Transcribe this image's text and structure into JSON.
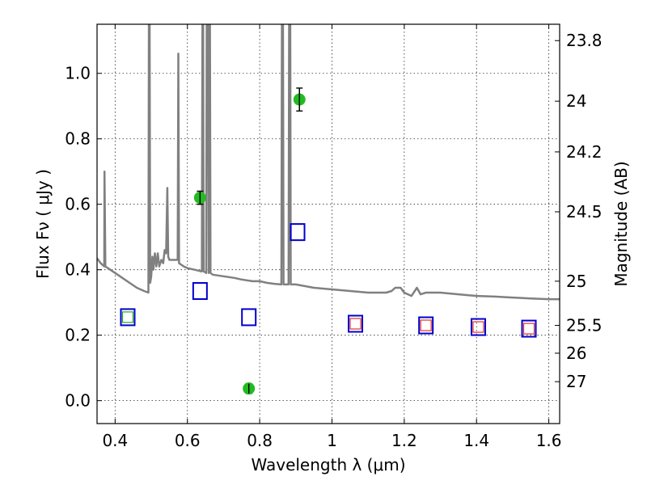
{
  "chart_data": {
    "type": "scatter",
    "xlabel": "Wavelength  λ (μm)",
    "ylabel": "Flux  Fν  ( μJy )",
    "y2label": "Magnitude (AB)",
    "xlim": [
      0.35,
      1.63
    ],
    "ylim": [
      -0.07,
      1.15
    ],
    "x_ticks": [
      0.4,
      0.6,
      0.8,
      1.0,
      1.2,
      1.4,
      1.6
    ],
    "x_tick_labels": [
      "0.4",
      "0.6",
      "0.8",
      "1",
      "1.2",
      "1.4",
      "1.6"
    ],
    "y_ticks": [
      0.0,
      0.2,
      0.4,
      0.6,
      0.8,
      1.0
    ],
    "y_tick_labels": [
      "0.0",
      "0.2",
      "0.4",
      "0.6",
      "0.8",
      "1.0"
    ],
    "y2_ticks": [
      {
        "label": "23.8",
        "flux": 1.1
      },
      {
        "label": "24",
        "flux": 0.915
      },
      {
        "label": "24.2",
        "flux": 0.76
      },
      {
        "label": "24.5",
        "flux": 0.577
      },
      {
        "label": "25",
        "flux": 0.365
      },
      {
        "label": "25.5",
        "flux": 0.23
      },
      {
        "label": "26",
        "flux": 0.145
      },
      {
        "label": "27",
        "flux": 0.058
      }
    ],
    "grid": true,
    "series": [
      {
        "kind": "line",
        "color": "#808080",
        "points": [
          [
            0.35,
            0.435
          ],
          [
            0.36,
            0.42
          ],
          [
            0.37,
            0.41
          ],
          [
            0.3705,
            0.7
          ],
          [
            0.373,
            0.41
          ],
          [
            0.38,
            0.405
          ],
          [
            0.4,
            0.39
          ],
          [
            0.42,
            0.375
          ],
          [
            0.44,
            0.36
          ],
          [
            0.46,
            0.345
          ],
          [
            0.48,
            0.335
          ],
          [
            0.492,
            0.33
          ],
          [
            0.4935,
            1.15
          ],
          [
            0.4955,
            1.15
          ],
          [
            0.497,
            0.36
          ],
          [
            0.5,
            0.38
          ],
          [
            0.503,
            0.44
          ],
          [
            0.506,
            0.4
          ],
          [
            0.51,
            0.45
          ],
          [
            0.514,
            0.41
          ],
          [
            0.518,
            0.45
          ],
          [
            0.522,
            0.41
          ],
          [
            0.528,
            0.43
          ],
          [
            0.533,
            0.42
          ],
          [
            0.537,
            0.46
          ],
          [
            0.541,
            0.45
          ],
          [
            0.5445,
            0.65
          ],
          [
            0.547,
            0.44
          ],
          [
            0.55,
            0.43
          ],
          [
            0.56,
            0.43
          ],
          [
            0.573,
            0.43
          ],
          [
            0.575,
            1.06
          ],
          [
            0.577,
            0.42
          ],
          [
            0.59,
            0.41
          ],
          [
            0.6,
            0.405
          ],
          [
            0.62,
            0.4
          ],
          [
            0.638,
            0.395
          ],
          [
            0.64,
            0.395
          ],
          [
            0.6415,
            1.15
          ],
          [
            0.6435,
            1.15
          ],
          [
            0.645,
            0.395
          ],
          [
            0.652,
            0.39
          ],
          [
            0.6535,
            1.15
          ],
          [
            0.6575,
            1.15
          ],
          [
            0.659,
            0.39
          ],
          [
            0.6605,
            1.15
          ],
          [
            0.6625,
            1.15
          ],
          [
            0.664,
            0.39
          ],
          [
            0.67,
            0.385
          ],
          [
            0.7,
            0.38
          ],
          [
            0.73,
            0.375
          ],
          [
            0.75,
            0.37
          ],
          [
            0.78,
            0.365
          ],
          [
            0.8,
            0.365
          ],
          [
            0.82,
            0.36
          ],
          [
            0.84,
            0.357
          ],
          [
            0.86,
            0.355
          ],
          [
            0.8615,
            1.15
          ],
          [
            0.8645,
            1.15
          ],
          [
            0.866,
            0.355
          ],
          [
            0.88,
            0.355
          ],
          [
            0.8815,
            1.15
          ],
          [
            0.8845,
            1.15
          ],
          [
            0.886,
            0.355
          ],
          [
            0.9,
            0.355
          ],
          [
            0.95,
            0.345
          ],
          [
            1.0,
            0.34
          ],
          [
            1.05,
            0.335
          ],
          [
            1.1,
            0.33
          ],
          [
            1.13,
            0.33
          ],
          [
            1.15,
            0.33
          ],
          [
            1.165,
            0.335
          ],
          [
            1.175,
            0.345
          ],
          [
            1.19,
            0.345
          ],
          [
            1.2,
            0.33
          ],
          [
            1.22,
            0.32
          ],
          [
            1.235,
            0.345
          ],
          [
            1.245,
            0.325
          ],
          [
            1.26,
            0.33
          ],
          [
            1.3,
            0.33
          ],
          [
            1.35,
            0.325
          ],
          [
            1.4,
            0.32
          ],
          [
            1.45,
            0.318
          ],
          [
            1.5,
            0.315
          ],
          [
            1.55,
            0.312
          ],
          [
            1.6,
            0.31
          ],
          [
            1.63,
            0.31
          ]
        ]
      },
      {
        "kind": "square",
        "color": "#0000cc",
        "points": [
          [
            0.435,
            0.255
          ],
          [
            0.635,
            0.335
          ],
          [
            0.77,
            0.255
          ],
          [
            0.905,
            0.515
          ],
          [
            1.065,
            0.235
          ],
          [
            1.26,
            0.23
          ],
          [
            1.405,
            0.225
          ],
          [
            1.545,
            0.22
          ]
        ]
      },
      {
        "kind": "small-square",
        "color": "#e03030",
        "points": [
          [
            1.065,
            0.235
          ],
          [
            1.26,
            0.23
          ],
          [
            1.405,
            0.225
          ],
          [
            1.545,
            0.22
          ]
        ]
      },
      {
        "kind": "small-square",
        "color": "#22aa22",
        "points": [
          [
            0.435,
            0.255
          ]
        ]
      },
      {
        "kind": "errorbar-circle",
        "color": "#22bb22",
        "points": [
          {
            "x": 0.635,
            "y": 0.62,
            "err": 0.02
          },
          {
            "x": 0.77,
            "y": 0.037,
            "err": 0.015
          },
          {
            "x": 0.91,
            "y": 0.92,
            "err": 0.035
          }
        ]
      }
    ]
  }
}
